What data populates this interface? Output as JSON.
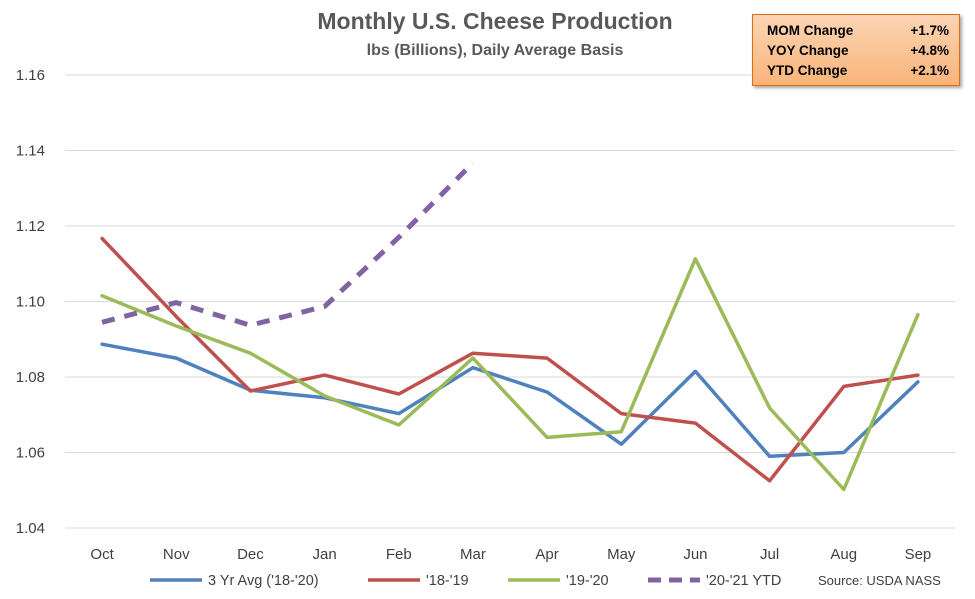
{
  "chart_data": {
    "type": "line",
    "title": "Monthly U.S. Cheese Production",
    "subtitle": "lbs (Billions), Daily Average Basis",
    "categories": [
      "Oct",
      "Nov",
      "Dec",
      "Jan",
      "Feb",
      "Mar",
      "Apr",
      "May",
      "Jun",
      "Jul",
      "Aug",
      "Sep"
    ],
    "ylim": [
      1.04,
      1.16
    ],
    "yticks": [
      1.04,
      1.06,
      1.08,
      1.1,
      1.12,
      1.14,
      1.16
    ],
    "ytick_labels": [
      "1.04",
      "1.06",
      "1.08",
      "1.10",
      "1.12",
      "1.14",
      "1.16"
    ],
    "grid": "horizontal",
    "legend_position": "bottom",
    "series": [
      {
        "name": "3 Yr Avg ('18-'20)",
        "color": "#4f81bd",
        "dashed": false,
        "values": [
          1.0887,
          1.085,
          1.0765,
          1.0745,
          1.0703,
          1.0825,
          1.076,
          1.0622,
          1.0815,
          1.059,
          1.06,
          1.0787
        ]
      },
      {
        "name": "'18-'19",
        "color": "#c0504d",
        "dashed": false,
        "values": [
          1.1167,
          1.096,
          1.0763,
          1.0805,
          1.0755,
          1.0863,
          1.085,
          1.0703,
          1.0678,
          1.0525,
          1.0775,
          1.0805
        ]
      },
      {
        "name": "'19-'20",
        "color": "#9bbb59",
        "dashed": false,
        "values": [
          1.1015,
          1.0935,
          1.0863,
          1.075,
          1.0673,
          1.085,
          1.064,
          1.0655,
          1.1113,
          1.0718,
          1.0502,
          1.0965
        ]
      },
      {
        "name": "'20-'21 YTD",
        "color": "#8064a2",
        "dashed": true,
        "values": [
          1.0945,
          1.0997,
          1.0937,
          1.0987,
          1.117,
          1.1367,
          null,
          null,
          null,
          null,
          null,
          null
        ]
      }
    ]
  },
  "stats": [
    {
      "label": "MOM Change",
      "value": "+1.7%"
    },
    {
      "label": "YOY Change",
      "value": "+4.8%"
    },
    {
      "label": "YTD Change",
      "value": "+2.1%"
    }
  ],
  "source": "Source: USDA NASS"
}
